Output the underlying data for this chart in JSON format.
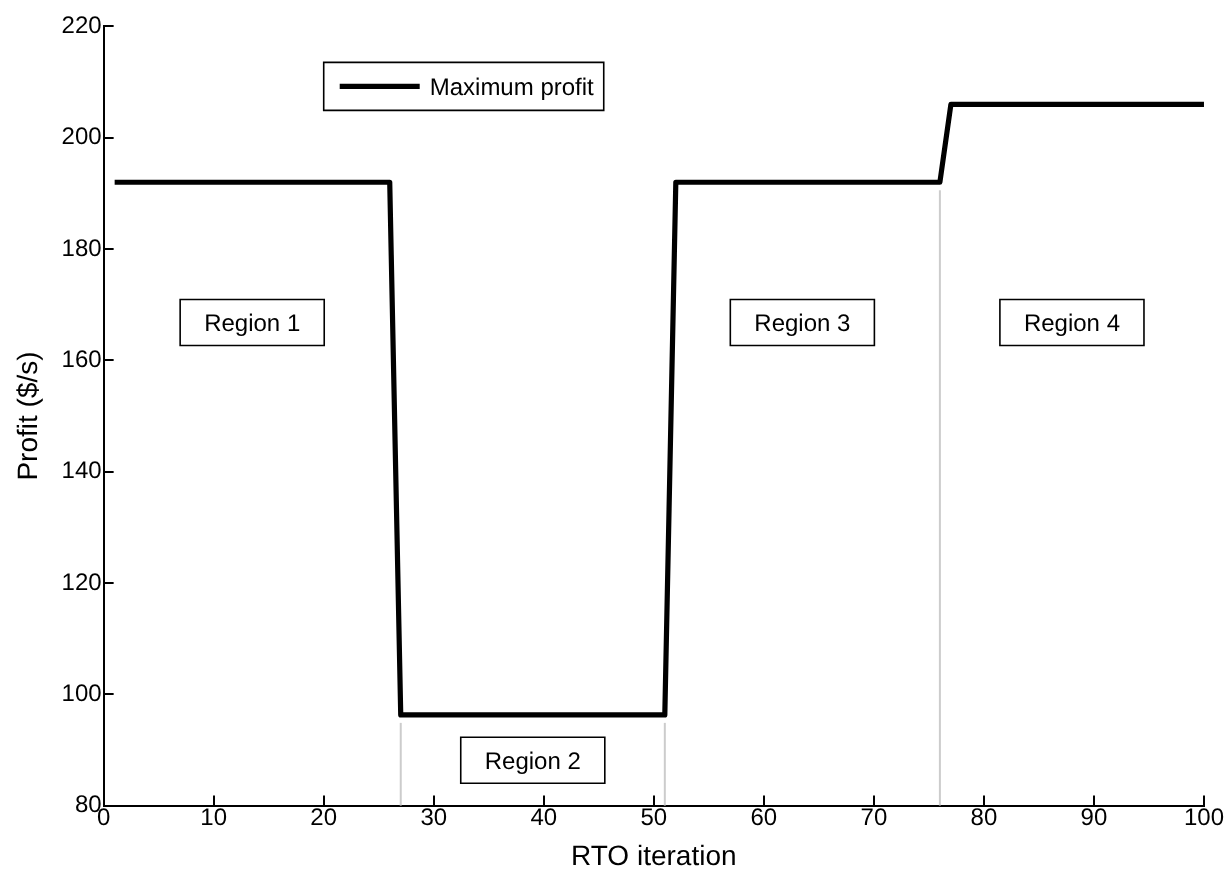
{
  "chart_data": {
    "type": "line",
    "xlabel": "RTO iteration",
    "ylabel": "Profit ($/s)",
    "x": [
      1,
      26,
      27,
      51,
      52,
      76,
      77,
      100
    ],
    "series": [
      {
        "name": "Maximum profit",
        "color": "#000000",
        "values": [
          192,
          192,
          96.3,
          96.3,
          192,
          192,
          206,
          206
        ]
      }
    ],
    "xlim": [
      0,
      100
    ],
    "xticks": [
      0,
      10,
      20,
      30,
      40,
      50,
      60,
      70,
      80,
      90,
      100
    ],
    "ylim": [
      80,
      220
    ],
    "yticks": [
      80,
      100,
      120,
      140,
      160,
      180,
      200,
      220
    ],
    "ref_lines": [
      {
        "axis": "x",
        "value": 27,
        "color": "#cccccc"
      },
      {
        "axis": "x",
        "value": 51,
        "color": "#cccccc"
      },
      {
        "axis": "x",
        "value": 76,
        "color": "#cccccc"
      }
    ],
    "annotations": [
      "Region 1",
      "Region 2",
      "Region 3",
      "Region 4"
    ],
    "legend": "top left",
    "marker": "none",
    "line_style": "solid",
    "grid": false
  }
}
